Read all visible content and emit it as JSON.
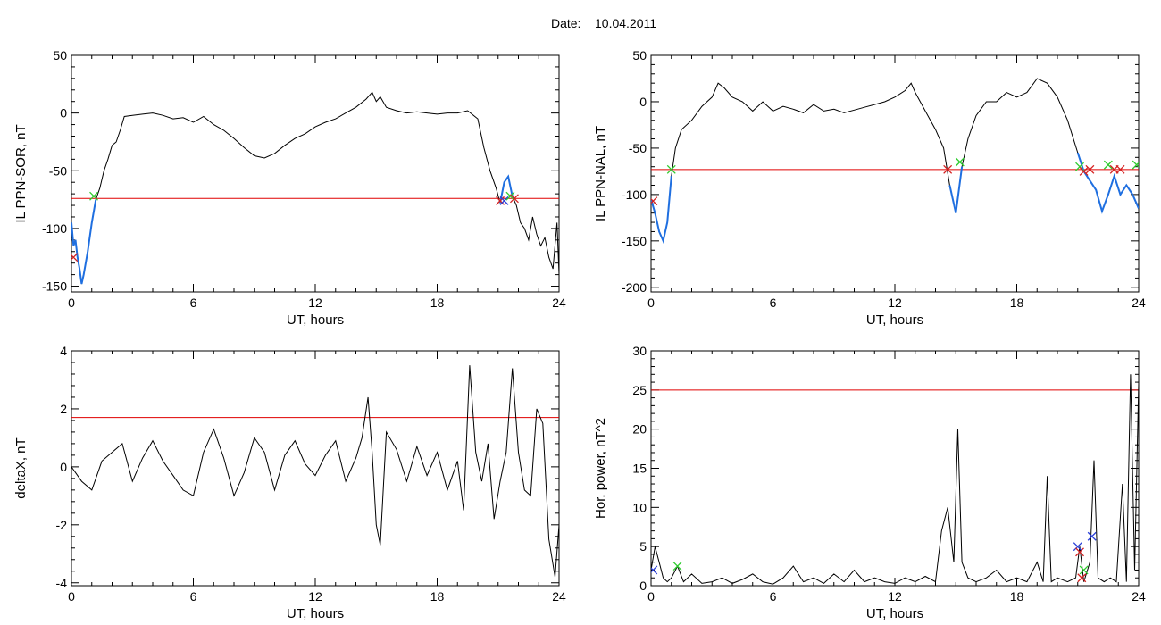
{
  "figure": {
    "date_label": "Date:",
    "date_value": "10.04.2011"
  },
  "colors": {
    "trace": "#000000",
    "threshold": "#e00000",
    "highlight": "#1f6fe0",
    "marker_start": "#2ecc2e",
    "marker_end": "#d42020",
    "marker_peak": "#2a3fd8"
  },
  "chart_data": [
    {
      "id": "sor",
      "type": "line",
      "ylabel": "IL PPN-SOR, nT",
      "xlabel": "UT, hours",
      "xlim": [
        0,
        24
      ],
      "ylim": [
        -155,
        50
      ],
      "xticks": [
        0,
        6,
        12,
        18,
        24
      ],
      "yticks": [
        -150,
        -100,
        -50,
        0,
        50
      ],
      "threshold": -74,
      "x": [
        0,
        0.1,
        0.2,
        0.3,
        0.4,
        0.5,
        0.6,
        0.8,
        1.0,
        1.2,
        1.4,
        1.6,
        1.8,
        2.0,
        2.2,
        2.4,
        2.6,
        3.0,
        3.5,
        4.0,
        4.5,
        5.0,
        5.5,
        6.0,
        6.5,
        7.0,
        7.5,
        8.0,
        8.5,
        9.0,
        9.5,
        10.0,
        10.5,
        11.0,
        11.5,
        12.0,
        12.5,
        13.0,
        13.5,
        14.0,
        14.5,
        14.8,
        15.0,
        15.2,
        15.5,
        16.0,
        16.5,
        17.0,
        17.5,
        18.0,
        18.5,
        19.0,
        19.5,
        20.0,
        20.3,
        20.6,
        20.9,
        21.1,
        21.3,
        21.5,
        21.7,
        21.9,
        22.1,
        22.3,
        22.5,
        22.7,
        22.9,
        23.1,
        23.3,
        23.5,
        23.7,
        23.9,
        24.0
      ],
      "y": [
        -95,
        -115,
        -110,
        -125,
        -135,
        -148,
        -140,
        -120,
        -95,
        -75,
        -65,
        -50,
        -40,
        -28,
        -25,
        -15,
        -3,
        -2,
        -1,
        0,
        -2,
        -5,
        -4,
        -8,
        -3,
        -10,
        -15,
        -22,
        -30,
        -37,
        -39,
        -35,
        -28,
        -22,
        -18,
        -12,
        -8,
        -5,
        0,
        5,
        12,
        18,
        10,
        14,
        5,
        2,
        0,
        1,
        0,
        -1,
        0,
        0,
        2,
        -5,
        -30,
        -50,
        -65,
        -78,
        -60,
        -55,
        -72,
        -80,
        -95,
        -100,
        -110,
        -90,
        -105,
        -115,
        -108,
        -125,
        -135,
        -95,
        -140
      ],
      "highlight_segments": [
        [
          0,
          1.2
        ],
        [
          21.0,
          21.8
        ]
      ],
      "markers": [
        {
          "x": 0.1,
          "y": -125,
          "kind": "end"
        },
        {
          "x": 1.1,
          "y": -72,
          "kind": "start"
        },
        {
          "x": 21.1,
          "y": -76,
          "kind": "end"
        },
        {
          "x": 21.3,
          "y": -76,
          "kind": "peak"
        },
        {
          "x": 21.6,
          "y": -72,
          "kind": "start"
        },
        {
          "x": 21.8,
          "y": -74,
          "kind": "end"
        }
      ]
    },
    {
      "id": "nal",
      "type": "line",
      "ylabel": "IL PPN-NAL, nT",
      "xlabel": "UT, hours",
      "xlim": [
        0,
        24
      ],
      "ylim": [
        -205,
        50
      ],
      "xticks": [
        0,
        6,
        12,
        18,
        24
      ],
      "yticks": [
        -200,
        -150,
        -100,
        -50,
        0,
        50
      ],
      "threshold": -73,
      "x": [
        0,
        0.2,
        0.4,
        0.6,
        0.8,
        1.0,
        1.2,
        1.5,
        2.0,
        2.5,
        3.0,
        3.3,
        3.6,
        4.0,
        4.5,
        5.0,
        5.5,
        6.0,
        6.5,
        7.0,
        7.5,
        8.0,
        8.5,
        9.0,
        9.5,
        10.0,
        10.5,
        11.0,
        11.5,
        12.0,
        12.5,
        12.8,
        13.0,
        13.5,
        14.0,
        14.4,
        14.7,
        15.0,
        15.3,
        15.6,
        16.0,
        16.5,
        17.0,
        17.5,
        18.0,
        18.5,
        19.0,
        19.5,
        20.0,
        20.5,
        21.0,
        21.3,
        21.6,
        21.9,
        22.2,
        22.5,
        22.8,
        23.1,
        23.4,
        23.7,
        24.0
      ],
      "y": [
        -105,
        -120,
        -140,
        -150,
        -130,
        -80,
        -50,
        -30,
        -20,
        -5,
        5,
        20,
        15,
        5,
        0,
        -10,
        0,
        -10,
        -5,
        -8,
        -12,
        -3,
        -10,
        -8,
        -12,
        -9,
        -6,
        -3,
        0,
        5,
        12,
        20,
        10,
        -10,
        -30,
        -50,
        -90,
        -120,
        -70,
        -40,
        -15,
        0,
        0,
        10,
        5,
        10,
        25,
        20,
        5,
        -20,
        -55,
        -75,
        -85,
        -95,
        -118,
        -100,
        -80,
        -100,
        -90,
        -100,
        -115
      ],
      "highlight_segments": [
        [
          0,
          1.0
        ],
        [
          14.6,
          15.3
        ],
        [
          21.0,
          24.0
        ]
      ],
      "markers": [
        {
          "x": 0.1,
          "y": -107,
          "kind": "end"
        },
        {
          "x": 1.0,
          "y": -73,
          "kind": "start"
        },
        {
          "x": 14.6,
          "y": -73,
          "kind": "end"
        },
        {
          "x": 15.2,
          "y": -65,
          "kind": "start"
        },
        {
          "x": 21.1,
          "y": -70,
          "kind": "start"
        },
        {
          "x": 21.3,
          "y": -75,
          "kind": "end"
        },
        {
          "x": 21.6,
          "y": -73,
          "kind": "end"
        },
        {
          "x": 22.5,
          "y": -68,
          "kind": "start"
        },
        {
          "x": 22.8,
          "y": -73,
          "kind": "end"
        },
        {
          "x": 23.1,
          "y": -73,
          "kind": "end"
        },
        {
          "x": 23.9,
          "y": -68,
          "kind": "start"
        }
      ]
    },
    {
      "id": "deltax",
      "type": "line",
      "ylabel": "deltaX, nT",
      "xlabel": "UT, hours",
      "xlim": [
        0,
        24
      ],
      "ylim": [
        -4.1,
        4
      ],
      "xticks": [
        0,
        6,
        12,
        18,
        24
      ],
      "yticks": [
        -4,
        -2,
        0,
        2,
        4
      ],
      "threshold": 1.7,
      "x": [
        0,
        0.5,
        1.0,
        1.5,
        2.0,
        2.5,
        3.0,
        3.5,
        4.0,
        4.5,
        5.0,
        5.5,
        6.0,
        6.5,
        7.0,
        7.5,
        8.0,
        8.5,
        9.0,
        9.5,
        10.0,
        10.5,
        11.0,
        11.5,
        12.0,
        12.5,
        13.0,
        13.5,
        14.0,
        14.3,
        14.6,
        14.8,
        15.0,
        15.2,
        15.5,
        16.0,
        16.5,
        17.0,
        17.5,
        18.0,
        18.5,
        19.0,
        19.3,
        19.6,
        19.9,
        20.2,
        20.5,
        20.8,
        21.1,
        21.4,
        21.7,
        22.0,
        22.3,
        22.6,
        22.9,
        23.2,
        23.5,
        23.8,
        24.0
      ],
      "y": [
        0,
        -0.5,
        -0.8,
        0.2,
        0.5,
        0.8,
        -0.5,
        0.3,
        0.9,
        0.2,
        -0.3,
        -0.8,
        -1.0,
        0.5,
        1.3,
        0.3,
        -1.0,
        -0.2,
        1.0,
        0.5,
        -0.8,
        0.4,
        0.9,
        0.1,
        -0.3,
        0.4,
        0.9,
        -0.5,
        0.3,
        1.0,
        2.4,
        0.5,
        -2.0,
        -2.7,
        1.2,
        0.6,
        -0.5,
        0.7,
        -0.3,
        0.5,
        -0.8,
        0.2,
        -1.5,
        3.5,
        0.5,
        -0.5,
        0.8,
        -1.8,
        -0.5,
        0.5,
        3.4,
        0.5,
        -0.8,
        -1.0,
        2.0,
        1.5,
        -2.5,
        -3.8,
        -2.0
      ],
      "highlight_segments": [],
      "markers": []
    },
    {
      "id": "hpower",
      "type": "line",
      "ylabel": "Hor. power, nT^2",
      "xlabel": "UT, hours",
      "xlim": [
        0,
        24
      ],
      "ylim": [
        0,
        30
      ],
      "xticks": [
        0,
        6,
        12,
        18,
        24
      ],
      "yticks": [
        0,
        5,
        10,
        15,
        20,
        25,
        30
      ],
      "threshold": 25,
      "x": [
        0,
        0.2,
        0.4,
        0.6,
        0.8,
        1.0,
        1.3,
        1.6,
        2.0,
        2.5,
        3.0,
        3.5,
        4.0,
        4.5,
        5.0,
        5.5,
        6.0,
        6.5,
        7.0,
        7.5,
        8.0,
        8.5,
        9.0,
        9.5,
        10.0,
        10.5,
        11.0,
        11.5,
        12.0,
        12.5,
        13.0,
        13.5,
        14.0,
        14.3,
        14.6,
        14.9,
        15.1,
        15.3,
        15.6,
        16.0,
        16.5,
        17.0,
        17.5,
        18.0,
        18.5,
        19.0,
        19.3,
        19.5,
        19.7,
        20.0,
        20.5,
        20.9,
        21.1,
        21.3,
        21.6,
        21.8,
        22.0,
        22.3,
        22.6,
        22.9,
        23.2,
        23.4,
        23.6,
        23.8,
        24.0
      ],
      "y": [
        2,
        5,
        3,
        1,
        0.5,
        1,
        2.5,
        0.5,
        1.5,
        0.3,
        0.5,
        1.0,
        0.3,
        0.8,
        1.5,
        0.5,
        0.2,
        1.0,
        2.5,
        0.5,
        1.0,
        0.3,
        1.5,
        0.5,
        2.0,
        0.5,
        1.0,
        0.5,
        0.3,
        1.0,
        0.5,
        1.2,
        0.5,
        7,
        10,
        3,
        20,
        3,
        1,
        0.5,
        1,
        2,
        0.5,
        1.0,
        0.5,
        3,
        0.5,
        14,
        0.5,
        1.0,
        0.5,
        1,
        5,
        0.5,
        3,
        16,
        1,
        0.5,
        1.0,
        0.5,
        13,
        0.5,
        27,
        2,
        26
      ],
      "highlight_segments": [],
      "markers": [
        {
          "x": 0.1,
          "y": 2.0,
          "kind": "peak"
        },
        {
          "x": 1.3,
          "y": 2.5,
          "kind": "start"
        },
        {
          "x": 21.0,
          "y": 5.0,
          "kind": "peak"
        },
        {
          "x": 21.1,
          "y": 4.3,
          "kind": "end"
        },
        {
          "x": 21.2,
          "y": 1.0,
          "kind": "end"
        },
        {
          "x": 21.3,
          "y": 2.0,
          "kind": "start"
        },
        {
          "x": 21.7,
          "y": 6.3,
          "kind": "peak"
        }
      ]
    }
  ]
}
